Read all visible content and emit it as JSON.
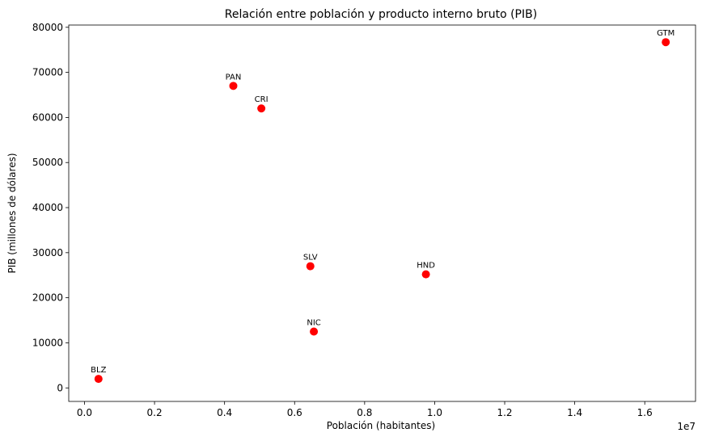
{
  "chart_data": {
    "type": "scatter",
    "title": "Relación entre población y producto interno bruto (PIB)",
    "xlabel": "Población (habitantes)",
    "ylabel": "PIB (millones de dólares)",
    "x_offset_text": "1e7",
    "xlim": [
      -0.045,
      1.745
    ],
    "ylim": [
      -3000,
      80500
    ],
    "xticks": [
      0.0,
      0.2,
      0.4,
      0.6,
      0.8,
      1.0,
      1.2,
      1.4,
      1.6
    ],
    "xtick_labels": [
      "0.0",
      "0.2",
      "0.4",
      "0.6",
      "0.8",
      "1.0",
      "1.2",
      "1.4",
      "1.6"
    ],
    "yticks": [
      0,
      10000,
      20000,
      30000,
      40000,
      50000,
      60000,
      70000,
      80000
    ],
    "ytick_labels": [
      "0",
      "10000",
      "20000",
      "30000",
      "40000",
      "50000",
      "60000",
      "70000",
      "80000"
    ],
    "grid": false,
    "marker_color": "#ff0000",
    "points": [
      {
        "label": "BLZ",
        "x": 0.04,
        "y": 2000
      },
      {
        "label": "PAN",
        "x": 0.425,
        "y": 67000
      },
      {
        "label": "CRI",
        "x": 0.505,
        "y": 62000
      },
      {
        "label": "SLV",
        "x": 0.645,
        "y": 27000
      },
      {
        "label": "NIC",
        "x": 0.655,
        "y": 12500
      },
      {
        "label": "HND",
        "x": 0.975,
        "y": 25200
      },
      {
        "label": "GTM",
        "x": 1.66,
        "y": 76700
      }
    ]
  }
}
